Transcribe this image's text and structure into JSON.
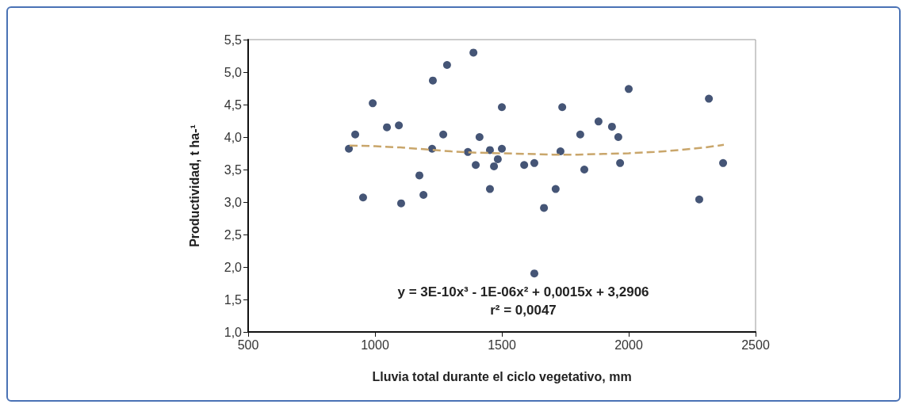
{
  "chart_data": {
    "type": "scatter",
    "xlabel": "Lluvia total durante el ciclo vegetativo, mm",
    "ylabel": "Productividad, t ha-¹",
    "xlim": [
      500,
      2500
    ],
    "xticks": [
      500,
      1000,
      1500,
      2000,
      2500
    ],
    "ylim": [
      1,
      5.5
    ],
    "yticks": [
      {
        "value": 1,
        "label": "1,0"
      },
      {
        "value": 1.5,
        "label": "1,5"
      },
      {
        "value": 2,
        "label": "2,0"
      },
      {
        "value": 2.5,
        "label": "2,5"
      },
      {
        "value": 3,
        "label": "3,0"
      },
      {
        "value": 3.5,
        "label": "3,5"
      },
      {
        "value": 4,
        "label": "4,0"
      },
      {
        "value": 4.5,
        "label": "4,5"
      },
      {
        "value": 5,
        "label": "5,0"
      },
      {
        "value": 5.5,
        "label": "5,5"
      }
    ],
    "grid": false,
    "series": [
      {
        "color": "#172b54",
        "marker": "circle",
        "x": [
          897,
          922,
          953,
          991,
          1047,
          1094,
          1103,
          1175,
          1191,
          1228,
          1225,
          1269,
          1284,
          1366,
          1388,
          1397,
          1412,
          1453,
          1453,
          1469,
          1484,
          1500,
          1500,
          1588,
          1628,
          1628,
          1666,
          1712,
          1731,
          1738,
          1809,
          1825,
          1881,
          1934,
          1959,
          1966,
          2000,
          2278,
          2316,
          2372
        ],
        "values": [
          3.82,
          4.04,
          3.07,
          4.52,
          4.15,
          4.18,
          2.98,
          3.41,
          3.11,
          4.87,
          3.82,
          4.04,
          5.11,
          3.77,
          5.3,
          3.57,
          4.0,
          3.8,
          3.2,
          3.55,
          3.66,
          4.46,
          3.82,
          3.57,
          3.6,
          1.9,
          2.91,
          3.2,
          3.78,
          4.46,
          4.04,
          3.5,
          4.24,
          4.16,
          4.0,
          3.6,
          4.74,
          3.04,
          4.59,
          3.6
        ]
      },
      {
        "type": "line",
        "color": "#c9a66b",
        "line_style": "dashed",
        "marker": "none",
        "x": [
          900,
          1000,
          1100,
          1200,
          1300,
          1400,
          1500,
          1600,
          1700,
          1800,
          1900,
          2000,
          2100,
          2200,
          2300,
          2375
        ],
        "values": [
          3.87,
          3.86,
          3.84,
          3.81,
          3.78,
          3.76,
          3.75,
          3.74,
          3.73,
          3.73,
          3.74,
          3.75,
          3.77,
          3.8,
          3.84,
          3.88
        ]
      }
    ],
    "annotations": [
      "y = 3E-10x³ - 1E-06x² + 0,0015x + 3,2906",
      "r² = 0,0047"
    ]
  }
}
